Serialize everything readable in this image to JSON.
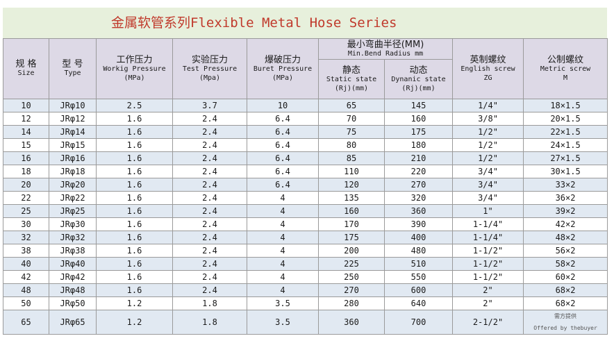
{
  "title": "金属软管系列Flexible Metal Hose Series",
  "headers": {
    "size_zh": "规 格",
    "size_en": "Size",
    "type_zh": "型 号",
    "type_en": "Type",
    "working_zh": "工作压力",
    "working_en1": "Workig Pressure",
    "working_en2": "(MPa)",
    "test_zh": "实验压力",
    "test_en1": "Test Pressure",
    "test_en2": "(Mpa)",
    "burst_zh": "爆破压力",
    "burst_en1": "Buret Pressure",
    "burst_en2": "(MPa)",
    "bend_zh": "最小弯曲半径(MM)",
    "bend_en": "Min.Bend Radius mm",
    "static_zh": "静态",
    "static_en1": "Static state",
    "static_en2": "(Rj)(mm)",
    "dynamic_zh": "动态",
    "dynamic_en1": "Dynanic state",
    "dynamic_en2": "(Rj)(mm)",
    "english_zh": "英制螺纹",
    "english_en1": "English screw",
    "english_en2": "ZG",
    "metric_zh": "公制螺纹",
    "metric_en1": "Metric screw",
    "metric_en2": "M"
  },
  "rows": [
    [
      "10",
      "JRφ10",
      "2.5",
      "3.7",
      "10",
      "65",
      "145",
      "1/4\"",
      "18×1.5"
    ],
    [
      "12",
      "JRφ12",
      "1.6",
      "2.4",
      "6.4",
      "70",
      "160",
      "3/8\"",
      "20×1.5"
    ],
    [
      "14",
      "JRφ14",
      "1.6",
      "2.4",
      "6.4",
      "75",
      "175",
      "1/2\"",
      "22×1.5"
    ],
    [
      "15",
      "JRφ15",
      "1.6",
      "2.4",
      "6.4",
      "80",
      "180",
      "1/2\"",
      "24×1.5"
    ],
    [
      "16",
      "JRφ16",
      "1.6",
      "2.4",
      "6.4",
      "85",
      "210",
      "1/2\"",
      "27×1.5"
    ],
    [
      "18",
      "JRφ18",
      "1.6",
      "2.4",
      "6.4",
      "110",
      "220",
      "3/4\"",
      "30×1.5"
    ],
    [
      "20",
      "JRφ20",
      "1.6",
      "2.4",
      "6.4",
      "120",
      "270",
      "3/4\"",
      "33×2"
    ],
    [
      "22",
      "JRφ22",
      "1.6",
      "2.4",
      "4",
      "135",
      "320",
      "3/4\"",
      "36×2"
    ],
    [
      "25",
      "JRφ25",
      "1.6",
      "2.4",
      "4",
      "160",
      "360",
      "1\"",
      "39×2"
    ],
    [
      "30",
      "JRφ30",
      "1.6",
      "2.4",
      "4",
      "170",
      "390",
      "1-1/4\"",
      "42×2"
    ],
    [
      "32",
      "JRφ32",
      "1.6",
      "2.4",
      "4",
      "175",
      "400",
      "1-1/4\"",
      "48×2"
    ],
    [
      "38",
      "JRφ38",
      "1.6",
      "2.4",
      "4",
      "200",
      "480",
      "1-1/2\"",
      "56×2"
    ],
    [
      "40",
      "JRφ40",
      "1.6",
      "2.4",
      "4",
      "225",
      "510",
      "1-1/2\"",
      "58×2"
    ],
    [
      "42",
      "JRφ42",
      "1.6",
      "2.4",
      "4",
      "250",
      "550",
      "1-1/2\"",
      "60×2"
    ],
    [
      "48",
      "JRφ48",
      "1.6",
      "2.4",
      "4",
      "270",
      "600",
      "2\"",
      "68×2"
    ],
    [
      "50",
      "JRφ50",
      "1.2",
      "1.8",
      "3.5",
      "280",
      "640",
      "2\"",
      "68×2"
    ],
    [
      "65",
      "JRφ65",
      "1.2",
      "1.8",
      "3.5",
      "360",
      "700",
      "2-1/2\"",
      ""
    ]
  ],
  "credit": {
    "zh": "需方提供",
    "en": "Offered by thebuyer"
  }
}
